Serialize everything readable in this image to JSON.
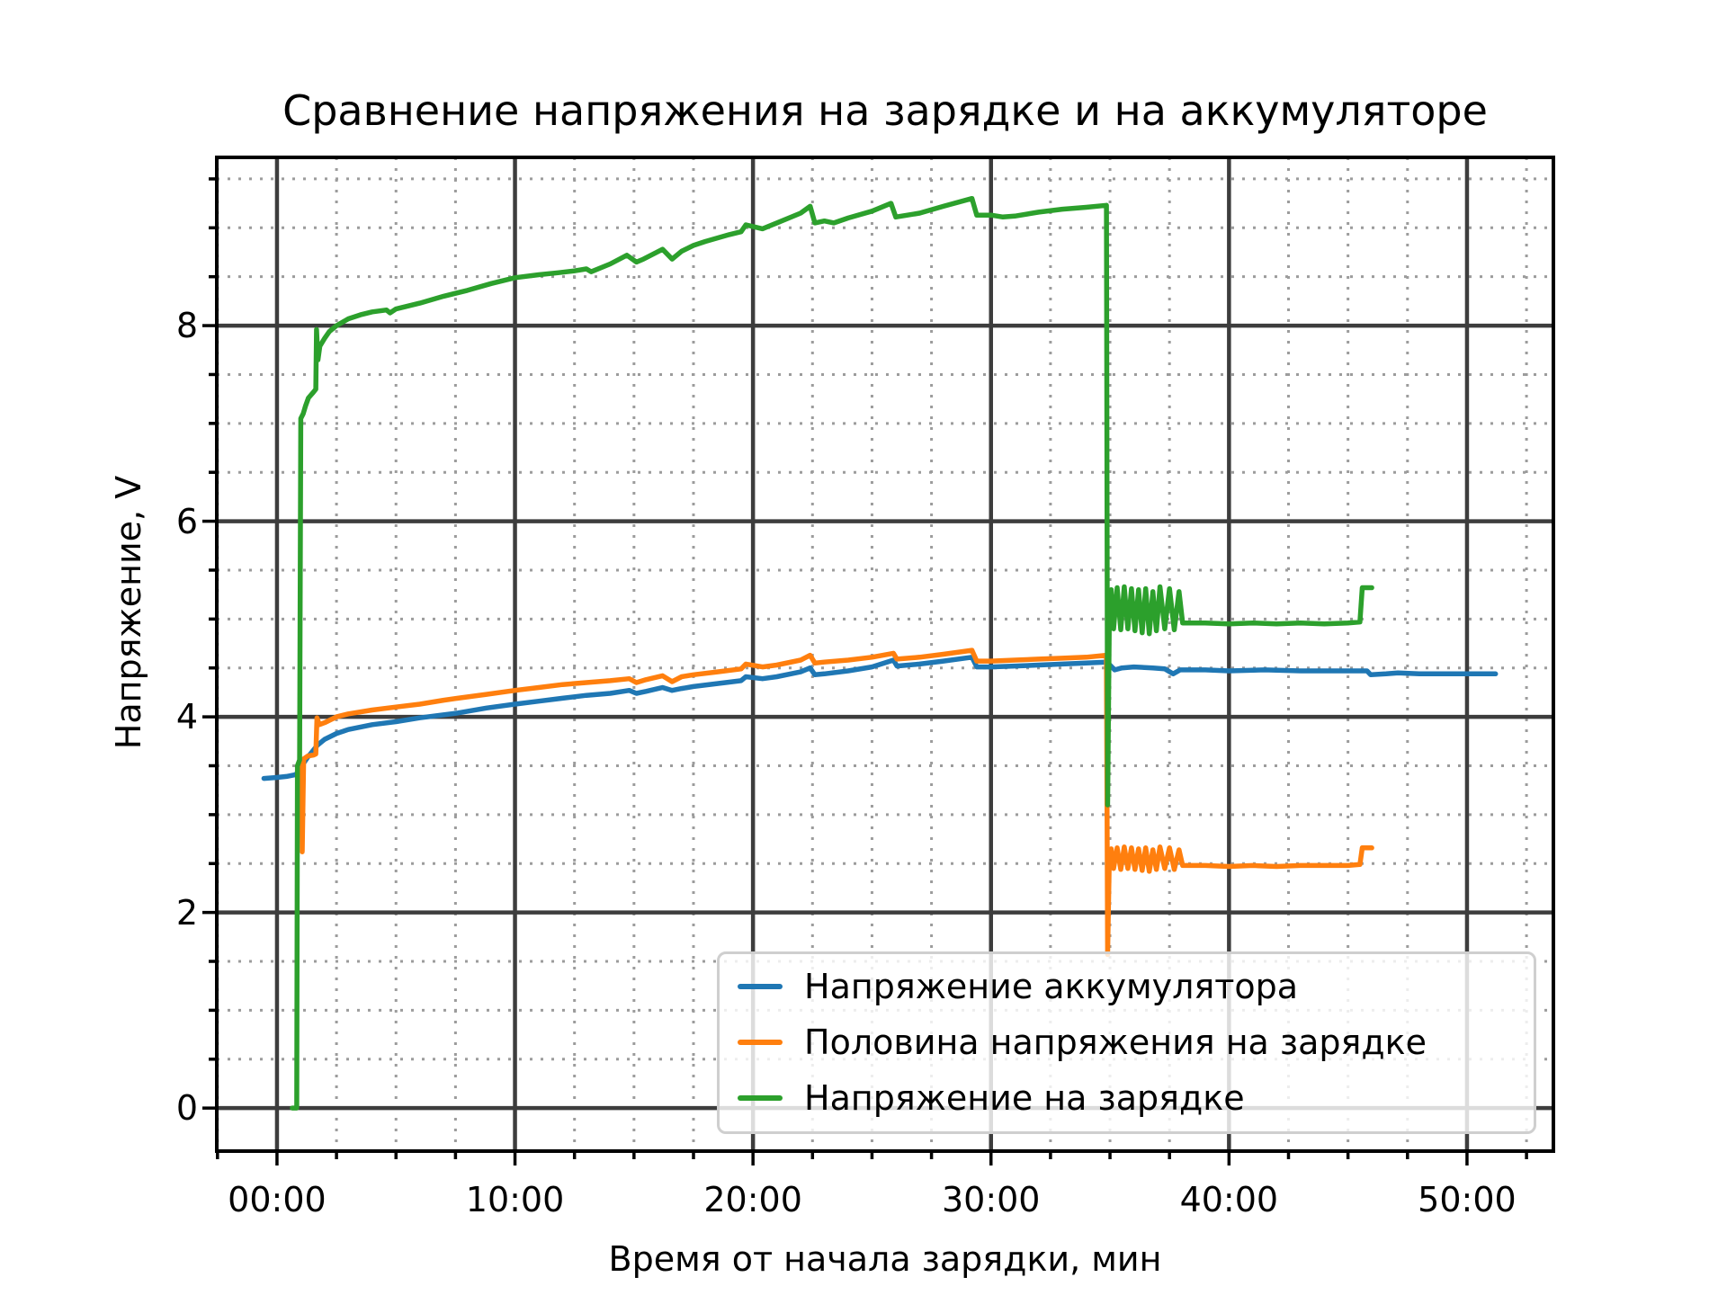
{
  "title": "Сравнение напряжения на зарядке и на аккумуляторе",
  "chart_data": {
    "type": "line",
    "title": "Сравнение напряжения на зарядке и на аккумуляторе",
    "xlabel": "Время от начала зарядки, мин",
    "ylabel": "Напряжение, V",
    "xlim": [
      -2.53,
      53.63
    ],
    "ylim": [
      -0.44,
      9.72
    ],
    "x_ticks": [
      {
        "value": 0,
        "label": "00:00"
      },
      {
        "value": 10,
        "label": "10:00"
      },
      {
        "value": 20,
        "label": "20:00"
      },
      {
        "value": 30,
        "label": "30:00"
      },
      {
        "value": 40,
        "label": "40:00"
      },
      {
        "value": 50,
        "label": "50:00"
      }
    ],
    "y_ticks": [
      {
        "value": 0,
        "label": "0"
      },
      {
        "value": 2,
        "label": "2"
      },
      {
        "value": 4,
        "label": "4"
      },
      {
        "value": 6,
        "label": "6"
      },
      {
        "value": 8,
        "label": "8"
      }
    ],
    "x_minor_step": 2.5,
    "y_minor_step": 0.5,
    "grid": {
      "major_color": "#3d3d3d",
      "minor_color": "#9c9c9c",
      "minor_style": "dotted",
      "spine_color": "#000000"
    },
    "legend_position": "lower right",
    "series": [
      {
        "name": "Напряжение аккумулятора",
        "color": "#1f77b4",
        "points": [
          [
            -0.55,
            3.37
          ],
          [
            0,
            3.38
          ],
          [
            0.4,
            3.39
          ],
          [
            0.8,
            3.41
          ],
          [
            0.95,
            3.47
          ],
          [
            1.1,
            3.52
          ],
          [
            1.3,
            3.59
          ],
          [
            1.5,
            3.65
          ],
          [
            1.7,
            3.71
          ],
          [
            2,
            3.77
          ],
          [
            2.5,
            3.83
          ],
          [
            3,
            3.87
          ],
          [
            4,
            3.92
          ],
          [
            5,
            3.95
          ],
          [
            6,
            3.99
          ],
          [
            7,
            4.02
          ],
          [
            7.6,
            4.04
          ],
          [
            8.8,
            4.09
          ],
          [
            10,
            4.13
          ],
          [
            11,
            4.16
          ],
          [
            12,
            4.19
          ],
          [
            13,
            4.22
          ],
          [
            14,
            4.24
          ],
          [
            14.8,
            4.27
          ],
          [
            15.1,
            4.24
          ],
          [
            15.5,
            4.26
          ],
          [
            16.2,
            4.3
          ],
          [
            16.6,
            4.27
          ],
          [
            17,
            4.29
          ],
          [
            17.5,
            4.31
          ],
          [
            18.5,
            4.34
          ],
          [
            19.5,
            4.37
          ],
          [
            19.7,
            4.41
          ],
          [
            20.4,
            4.39
          ],
          [
            21,
            4.41
          ],
          [
            22,
            4.46
          ],
          [
            22.4,
            4.5
          ],
          [
            22.6,
            4.43
          ],
          [
            23,
            4.44
          ],
          [
            24,
            4.47
          ],
          [
            25,
            4.51
          ],
          [
            25.9,
            4.58
          ],
          [
            26.05,
            4.52
          ],
          [
            27,
            4.54
          ],
          [
            28,
            4.57
          ],
          [
            29.2,
            4.61
          ],
          [
            29.4,
            4.51
          ],
          [
            30,
            4.51
          ],
          [
            31,
            4.52
          ],
          [
            32,
            4.53
          ],
          [
            33,
            4.54
          ],
          [
            34,
            4.55
          ],
          [
            34.85,
            4.56
          ],
          [
            35,
            4.53
          ],
          [
            35.2,
            4.48
          ],
          [
            35.5,
            4.5
          ],
          [
            36,
            4.51
          ],
          [
            36.8,
            4.5
          ],
          [
            37.3,
            4.49
          ],
          [
            37.65,
            4.44
          ],
          [
            37.95,
            4.48
          ],
          [
            39,
            4.48
          ],
          [
            40,
            4.47
          ],
          [
            41.5,
            4.48
          ],
          [
            43,
            4.47
          ],
          [
            44.5,
            4.47
          ],
          [
            45.8,
            4.47
          ],
          [
            45.95,
            4.43
          ],
          [
            46.6,
            4.44
          ],
          [
            47.1,
            4.45
          ],
          [
            48,
            4.44
          ],
          [
            49.5,
            4.44
          ],
          [
            51.2,
            4.44
          ]
        ]
      },
      {
        "name": "Половина напряжения на зарядке",
        "color": "#ff7f0e",
        "points": [
          [
            1.02,
            3.55
          ],
          [
            1.06,
            2.62
          ],
          [
            1.12,
            3.57
          ],
          [
            1.3,
            3.6
          ],
          [
            1.55,
            3.61
          ],
          [
            1.63,
            3.62
          ],
          [
            1.68,
            3.99
          ],
          [
            1.78,
            3.92
          ],
          [
            2,
            3.94
          ],
          [
            2.5,
            4.0
          ],
          [
            3,
            4.03
          ],
          [
            4,
            4.07
          ],
          [
            5,
            4.1
          ],
          [
            6,
            4.13
          ],
          [
            7,
            4.17
          ],
          [
            7.6,
            4.19
          ],
          [
            8.8,
            4.23
          ],
          [
            10,
            4.27
          ],
          [
            11,
            4.3
          ],
          [
            12,
            4.33
          ],
          [
            13,
            4.35
          ],
          [
            14,
            4.37
          ],
          [
            14.8,
            4.39
          ],
          [
            15.1,
            4.35
          ],
          [
            15.5,
            4.38
          ],
          [
            16.2,
            4.42
          ],
          [
            16.6,
            4.36
          ],
          [
            17,
            4.41
          ],
          [
            17.5,
            4.43
          ],
          [
            18.5,
            4.46
          ],
          [
            19.5,
            4.49
          ],
          [
            19.7,
            4.54
          ],
          [
            20.4,
            4.51
          ],
          [
            21,
            4.53
          ],
          [
            22,
            4.58
          ],
          [
            22.4,
            4.63
          ],
          [
            22.6,
            4.55
          ],
          [
            23,
            4.56
          ],
          [
            24,
            4.58
          ],
          [
            25,
            4.61
          ],
          [
            25.9,
            4.65
          ],
          [
            26.05,
            4.59
          ],
          [
            27,
            4.61
          ],
          [
            28,
            4.64
          ],
          [
            29.2,
            4.68
          ],
          [
            29.4,
            4.57
          ],
          [
            30,
            4.57
          ],
          [
            31,
            4.58
          ],
          [
            32,
            4.59
          ],
          [
            33,
            4.6
          ],
          [
            34,
            4.61
          ],
          [
            34.85,
            4.63
          ],
          [
            34.9,
            1.57
          ],
          [
            34.97,
            2.55
          ],
          [
            35.05,
            2.65
          ],
          [
            35.15,
            2.45
          ],
          [
            35.3,
            2.66
          ],
          [
            35.45,
            2.44
          ],
          [
            35.6,
            2.67
          ],
          [
            35.75,
            2.45
          ],
          [
            35.9,
            2.66
          ],
          [
            36.05,
            2.44
          ],
          [
            36.2,
            2.65
          ],
          [
            36.35,
            2.43
          ],
          [
            36.5,
            2.66
          ],
          [
            36.65,
            2.42
          ],
          [
            36.8,
            2.64
          ],
          [
            36.95,
            2.44
          ],
          [
            37.1,
            2.67
          ],
          [
            37.3,
            2.45
          ],
          [
            37.5,
            2.66
          ],
          [
            37.7,
            2.44
          ],
          [
            37.9,
            2.64
          ],
          [
            38.05,
            2.48
          ],
          [
            39,
            2.48
          ],
          [
            40,
            2.47
          ],
          [
            41,
            2.48
          ],
          [
            42,
            2.47
          ],
          [
            43,
            2.48
          ],
          [
            44,
            2.48
          ],
          [
            45,
            2.48
          ],
          [
            45.5,
            2.49
          ],
          [
            45.6,
            2.66
          ],
          [
            46,
            2.66
          ]
        ]
      },
      {
        "name": "Напряжение на зарядке",
        "color": "#2ca02c",
        "points": [
          [
            0.64,
            0
          ],
          [
            0.83,
            0
          ],
          [
            0.86,
            3.5
          ],
          [
            0.95,
            3.56
          ],
          [
            1.0,
            7.05
          ],
          [
            1.1,
            7.1
          ],
          [
            1.2,
            7.18
          ],
          [
            1.32,
            7.26
          ],
          [
            1.5,
            7.31
          ],
          [
            1.63,
            7.35
          ],
          [
            1.66,
            7.96
          ],
          [
            1.72,
            7.65
          ],
          [
            1.8,
            7.79
          ],
          [
            2,
            7.87
          ],
          [
            2.2,
            7.94
          ],
          [
            2.5,
            8.0
          ],
          [
            3,
            8.07
          ],
          [
            3.5,
            8.11
          ],
          [
            4,
            8.14
          ],
          [
            4.6,
            8.16
          ],
          [
            4.75,
            8.13
          ],
          [
            5,
            8.17
          ],
          [
            6,
            8.23
          ],
          [
            7,
            8.3
          ],
          [
            8,
            8.36
          ],
          [
            9,
            8.43
          ],
          [
            10,
            8.49
          ],
          [
            11,
            8.52
          ],
          [
            11.8,
            8.54
          ],
          [
            12.5,
            8.56
          ],
          [
            13,
            8.58
          ],
          [
            13.2,
            8.55
          ],
          [
            14,
            8.63
          ],
          [
            14.7,
            8.72
          ],
          [
            15.1,
            8.65
          ],
          [
            15.4,
            8.68
          ],
          [
            16.2,
            8.78
          ],
          [
            16.6,
            8.68
          ],
          [
            17,
            8.76
          ],
          [
            17.5,
            8.82
          ],
          [
            18,
            8.86
          ],
          [
            19,
            8.93
          ],
          [
            19.5,
            8.96
          ],
          [
            19.7,
            9.03
          ],
          [
            20.4,
            8.99
          ],
          [
            21,
            9.05
          ],
          [
            22,
            9.15
          ],
          [
            22.4,
            9.22
          ],
          [
            22.6,
            9.05
          ],
          [
            23,
            9.07
          ],
          [
            23.4,
            9.05
          ],
          [
            24,
            9.1
          ],
          [
            25,
            9.17
          ],
          [
            25.8,
            9.25
          ],
          [
            26,
            9.11
          ],
          [
            27,
            9.15
          ],
          [
            28,
            9.22
          ],
          [
            29.2,
            9.3
          ],
          [
            29.4,
            9.13
          ],
          [
            30,
            9.13
          ],
          [
            30.5,
            9.11
          ],
          [
            31,
            9.12
          ],
          [
            32,
            9.16
          ],
          [
            33,
            9.19
          ],
          [
            34,
            9.21
          ],
          [
            34.85,
            9.23
          ],
          [
            34.9,
            3.1
          ],
          [
            34.97,
            5.0
          ],
          [
            35.05,
            5.3
          ],
          [
            35.15,
            4.9
          ],
          [
            35.3,
            5.32
          ],
          [
            35.45,
            4.89
          ],
          [
            35.6,
            5.33
          ],
          [
            35.75,
            4.9
          ],
          [
            35.9,
            5.31
          ],
          [
            36.05,
            4.88
          ],
          [
            36.2,
            5.3
          ],
          [
            36.35,
            4.86
          ],
          [
            36.5,
            5.31
          ],
          [
            36.65,
            4.85
          ],
          [
            36.8,
            5.28
          ],
          [
            36.95,
            4.88
          ],
          [
            37.1,
            5.33
          ],
          [
            37.3,
            4.9
          ],
          [
            37.5,
            5.31
          ],
          [
            37.7,
            4.89
          ],
          [
            37.9,
            5.28
          ],
          [
            38.05,
            4.96
          ],
          [
            39,
            4.96
          ],
          [
            40,
            4.95
          ],
          [
            41,
            4.96
          ],
          [
            42,
            4.95
          ],
          [
            43,
            4.96
          ],
          [
            44,
            4.95
          ],
          [
            45,
            4.96
          ],
          [
            45.5,
            4.97
          ],
          [
            45.6,
            5.32
          ],
          [
            46,
            5.32
          ]
        ]
      }
    ]
  }
}
